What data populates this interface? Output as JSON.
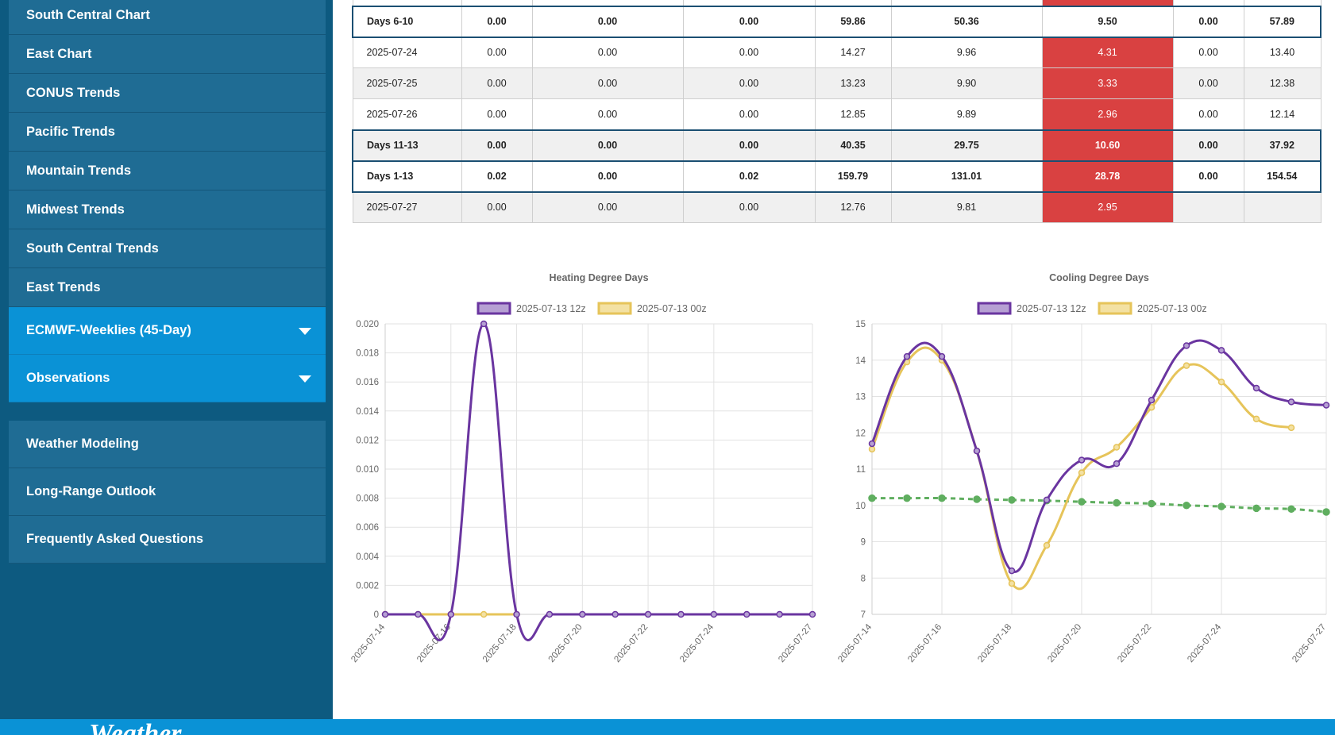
{
  "sidebar": {
    "items": [
      {
        "label": "South Central Chart"
      },
      {
        "label": "East Chart"
      },
      {
        "label": "CONUS Trends"
      },
      {
        "label": "Pacific Trends"
      },
      {
        "label": "Mountain Trends"
      },
      {
        "label": "Midwest Trends"
      },
      {
        "label": "South Central Trends"
      },
      {
        "label": "East Trends"
      }
    ],
    "dropdowns": [
      {
        "label": "ECMWF-Weeklies (45-Day)"
      },
      {
        "label": "Observations"
      }
    ],
    "lower_items": [
      {
        "label": "Weather Modeling"
      },
      {
        "label": "Long-Range Outlook"
      },
      {
        "label": "Frequently Asked Questions"
      }
    ]
  },
  "table": {
    "rows": [
      {
        "cells": [
          "",
          "",
          "",
          "",
          "",
          "",
          "",
          "",
          ""
        ],
        "style": "toprow",
        "hot": true
      },
      {
        "cells": [
          "Days 6-10",
          "0.00",
          "0.00",
          "0.00",
          "59.86",
          "50.36",
          "9.50",
          "0.00",
          "57.89"
        ],
        "style": "bold",
        "hot": false
      },
      {
        "cells": [
          "2025-07-24",
          "0.00",
          "0.00",
          "0.00",
          "14.27",
          "9.96",
          "4.31",
          "0.00",
          "13.40"
        ],
        "style": "",
        "hot": true
      },
      {
        "cells": [
          "2025-07-25",
          "0.00",
          "0.00",
          "0.00",
          "13.23",
          "9.90",
          "3.33",
          "0.00",
          "12.38"
        ],
        "style": "alt",
        "hot": true
      },
      {
        "cells": [
          "2025-07-26",
          "0.00",
          "0.00",
          "0.00",
          "12.85",
          "9.89",
          "2.96",
          "0.00",
          "12.14"
        ],
        "style": "",
        "hot": true
      },
      {
        "cells": [
          "Days 11-13",
          "0.00",
          "0.00",
          "0.00",
          "40.35",
          "29.75",
          "10.60",
          "0.00",
          "37.92"
        ],
        "style": "bold alt",
        "hot": true
      },
      {
        "cells": [
          "Days 1-13",
          "0.02",
          "0.00",
          "0.02",
          "159.79",
          "131.01",
          "28.78",
          "0.00",
          "154.54"
        ],
        "style": "bold",
        "hot": true
      },
      {
        "cells": [
          "2025-07-27",
          "0.00",
          "0.00",
          "0.00",
          "12.76",
          "9.81",
          "2.95",
          "",
          ""
        ],
        "style": "alt",
        "hot": true
      }
    ]
  },
  "colors": {
    "series_12z": "#6a35a0",
    "series_12z_fill": "#b6a0d3",
    "series_00z": "#e6c45a",
    "series_00z_fill": "#f3e1a3",
    "normal": "#5fae5f",
    "hot_cell": "#d94141",
    "sidebar_bg": "#0d5a80",
    "sidebar_item": "#1f6c94",
    "dropdown_bg": "#0a92d6"
  },
  "icons": {
    "dropdown": "caret-down-icon"
  },
  "chart_data": [
    {
      "type": "line",
      "title": "Heating Degree Days",
      "x": [
        "2025-07-14",
        "2025-07-15",
        "2025-07-16",
        "2025-07-17",
        "2025-07-18",
        "2025-07-19",
        "2025-07-20",
        "2025-07-21",
        "2025-07-22",
        "2025-07-23",
        "2025-07-24",
        "2025-07-25",
        "2025-07-26",
        "2025-07-27"
      ],
      "xticks": [
        "2025-07-14",
        "2025-07-16",
        "2025-07-18",
        "2025-07-20",
        "2025-07-22",
        "2025-07-24",
        "2025-07-27"
      ],
      "ylim": [
        0,
        0.02
      ],
      "yticks": [
        0,
        0.002,
        0.004,
        0.006,
        0.008,
        0.01,
        0.012,
        0.014,
        0.016,
        0.018,
        0.02
      ],
      "ytick_labels": [
        "0",
        "0.002",
        "0.004",
        "0.006",
        "0.008",
        "0.010",
        "0.012",
        "0.014",
        "0.016",
        "0.018",
        "0.020"
      ],
      "legend": "top",
      "grid": true,
      "series": [
        {
          "name": "2025-07-13 12z",
          "values": [
            0,
            0,
            0,
            0.02,
            0,
            0,
            0,
            0,
            0,
            0,
            0,
            0,
            0,
            0
          ]
        },
        {
          "name": "2025-07-13 00z",
          "values": [
            0,
            0,
            0,
            0,
            0,
            null,
            null,
            null,
            null,
            null,
            null,
            null,
            null,
            null
          ]
        }
      ]
    },
    {
      "type": "line",
      "title": "Cooling Degree Days",
      "x": [
        "2025-07-14",
        "2025-07-15",
        "2025-07-16",
        "2025-07-17",
        "2025-07-18",
        "2025-07-19",
        "2025-07-20",
        "2025-07-21",
        "2025-07-22",
        "2025-07-23",
        "2025-07-24",
        "2025-07-25",
        "2025-07-26",
        "2025-07-27"
      ],
      "xticks": [
        "2025-07-14",
        "2025-07-16",
        "2025-07-18",
        "2025-07-20",
        "2025-07-22",
        "2025-07-24",
        "2025-07-27"
      ],
      "ylim": [
        7,
        15
      ],
      "yticks": [
        7,
        8,
        9,
        10,
        11,
        12,
        13,
        14,
        15
      ],
      "ytick_labels": [
        "7",
        "8",
        "9",
        "10",
        "11",
        "12",
        "13",
        "14",
        "15"
      ],
      "legend": "top",
      "grid": true,
      "series": [
        {
          "name": "2025-07-13 12z",
          "values": [
            11.7,
            14.1,
            14.1,
            11.5,
            8.2,
            10.15,
            11.25,
            11.15,
            12.9,
            14.4,
            14.27,
            13.23,
            12.85,
            12.76
          ]
        },
        {
          "name": "2025-07-13 00z",
          "values": [
            11.55,
            13.95,
            14.0,
            11.5,
            7.85,
            8.9,
            10.9,
            11.6,
            12.7,
            13.85,
            13.4,
            12.38,
            12.14,
            null
          ]
        },
        {
          "name": "",
          "dashed": true,
          "values": [
            10.2,
            10.2,
            10.2,
            10.17,
            10.15,
            10.13,
            10.1,
            10.07,
            10.05,
            10.0,
            9.97,
            9.92,
            9.9,
            9.82
          ]
        }
      ]
    }
  ]
}
